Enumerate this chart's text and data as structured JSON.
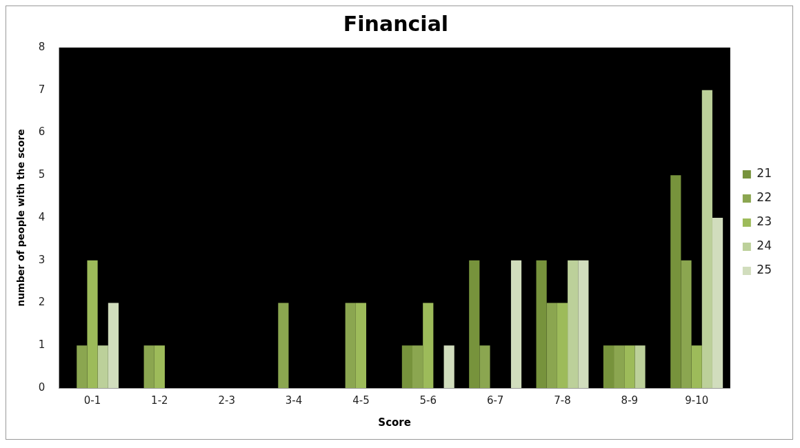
{
  "chart_data": {
    "type": "bar",
    "title": "Financial",
    "xlabel": "Score",
    "ylabel": "number of people with the score",
    "categories": [
      "0-1",
      "1-2",
      "2-3",
      "3-4",
      "4-5",
      "5-6",
      "6-7",
      "7-8",
      "8-9",
      "9-10"
    ],
    "series": [
      {
        "name": "21",
        "color": "#77933c",
        "values": [
          0,
          0,
          0,
          0,
          0,
          1,
          3,
          3,
          1,
          5
        ]
      },
      {
        "name": "22",
        "color": "#8ba650",
        "values": [
          1,
          1,
          0,
          2,
          2,
          1,
          1,
          2,
          1,
          3
        ]
      },
      {
        "name": "23",
        "color": "#9dbb5a",
        "values": [
          3,
          1,
          0,
          0,
          2,
          2,
          0,
          2,
          1,
          1
        ]
      },
      {
        "name": "24",
        "color": "#bcd09a",
        "values": [
          1,
          0,
          0,
          0,
          0,
          0,
          0,
          3,
          1,
          7
        ]
      },
      {
        "name": "25",
        "color": "#d1ddbd",
        "values": [
          2,
          0,
          0,
          0,
          0,
          1,
          3,
          3,
          0,
          4
        ]
      }
    ],
    "ylim": [
      0,
      8
    ],
    "yticks": [
      0,
      1,
      2,
      3,
      4,
      5,
      6,
      7,
      8
    ],
    "grid": false,
    "legend": "right"
  }
}
